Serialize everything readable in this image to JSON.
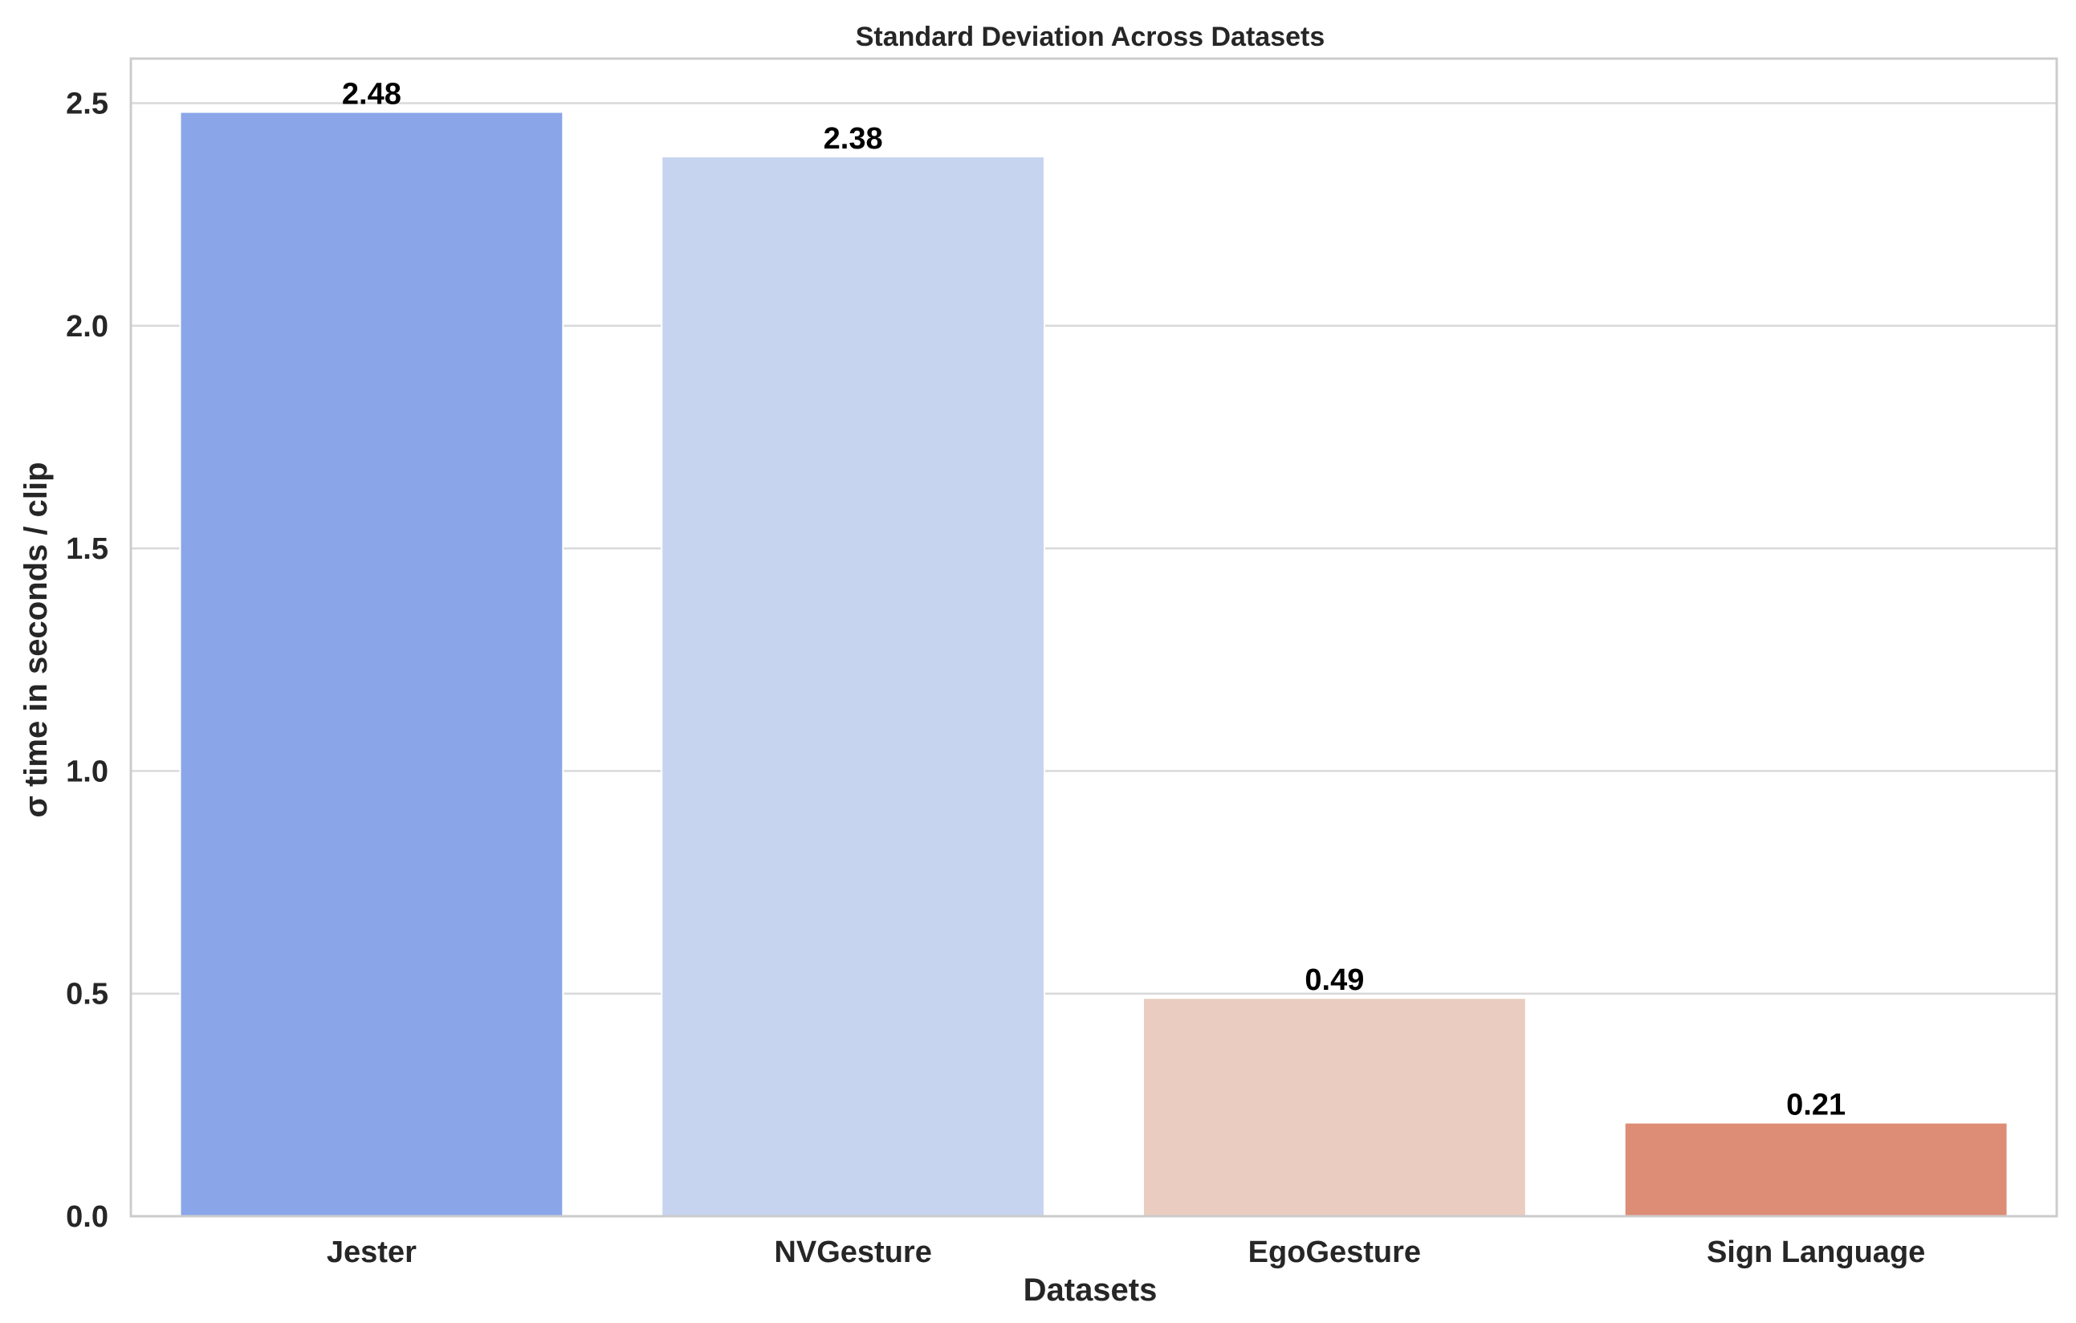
{
  "chart_data": {
    "type": "bar",
    "title": "Standard Deviation Across Datasets",
    "xlabel": "Datasets",
    "ylabel": "σ time in seconds / clip",
    "categories": [
      "Jester",
      "NVGesture",
      "EgoGesture",
      "Sign Language"
    ],
    "values": [
      2.48,
      2.38,
      0.49,
      0.21
    ],
    "value_labels": [
      "2.48",
      "2.38",
      "0.49",
      "0.21"
    ],
    "bar_colors": [
      "#8aa6e8",
      "#c7d4ef",
      "#eacdc0",
      "#dd8c76"
    ],
    "yticks": [
      0.0,
      0.5,
      1.0,
      1.5,
      2.0,
      2.5
    ],
    "ytick_labels": [
      "0.0",
      "0.5",
      "1.0",
      "1.5",
      "2.0",
      "2.5"
    ],
    "ylim": [
      0,
      2.6
    ],
    "grid": "horizontal",
    "legend": "none"
  }
}
